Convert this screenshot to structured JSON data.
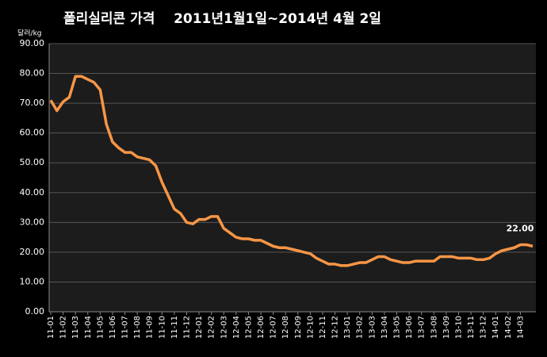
{
  "chart_data": {
    "type": "line",
    "title": "폴리실리콘 가격    2011년1월1일~2014년 4월 2일",
    "y_label": "달러/kg",
    "categories": [
      "11-01",
      null,
      "11-02",
      null,
      "11-03",
      null,
      "11-04",
      null,
      "11-05",
      null,
      "11-06",
      null,
      "11-07",
      null,
      "11-08",
      null,
      "11-09",
      null,
      "11-10",
      null,
      "11-11",
      null,
      "11-12",
      null,
      "12-01",
      null,
      "12-02",
      null,
      "12-03",
      null,
      "12-04",
      null,
      "12-05",
      null,
      "12-06",
      null,
      "12-07",
      null,
      "12-08",
      null,
      "12-09",
      null,
      "12-10",
      null,
      "12-11",
      null,
      "12-12",
      null,
      "13-01",
      null,
      "13-02",
      null,
      "13-03",
      null,
      "13-04",
      null,
      "13-05",
      null,
      "13-06",
      null,
      "13-07",
      null,
      "13-08",
      null,
      "13-09",
      null,
      "13-10",
      null,
      "13-11",
      null,
      "13-12",
      null,
      "14-01",
      null,
      "14-02",
      null,
      "14-03",
      null,
      null
    ],
    "series": [
      {
        "color": "#f79646",
        "values": [
          71,
          67.5,
          70.5,
          72,
          79,
          79,
          78,
          77,
          74.5,
          63,
          57,
          55,
          53.5,
          53.5,
          52,
          51.5,
          51,
          49,
          43.5,
          39,
          34.5,
          33,
          30,
          29.5,
          31,
          31,
          32,
          32,
          28,
          26.5,
          25,
          24.5,
          24.5,
          24,
          24,
          23,
          22,
          21.5,
          21.5,
          21,
          20.5,
          20,
          19.5,
          18,
          17,
          16,
          16,
          15.5,
          15.5,
          16,
          16.5,
          16.5,
          17.5,
          18.5,
          18.5,
          17.5,
          17,
          16.5,
          16.5,
          17,
          17,
          17,
          17,
          18.5,
          18.5,
          18.5,
          18,
          18,
          18,
          17.5,
          17.5,
          18,
          19.5,
          20.5,
          21,
          21.5,
          22.5,
          22.5,
          22
        ],
        "value_labels": [
          null,
          null,
          null,
          null,
          null,
          null,
          null,
          null,
          null,
          null,
          null,
          null,
          null,
          null,
          null,
          null,
          null,
          null,
          null,
          null,
          null,
          null,
          null,
          null,
          null,
          null,
          null,
          null,
          null,
          null,
          null,
          null,
          null,
          null,
          null,
          null,
          null,
          null,
          null,
          null,
          null,
          null,
          null,
          null,
          null,
          null,
          null,
          null,
          null,
          null,
          null,
          null,
          null,
          null,
          null,
          null,
          null,
          null,
          null,
          null,
          null,
          null,
          null,
          null,
          null,
          null,
          null,
          null,
          null,
          null,
          null,
          null,
          null,
          null,
          null,
          null,
          null,
          null,
          "22.00"
        ]
      }
    ],
    "ylim": [
      0,
      90
    ],
    "yticks": [
      {
        "value": 0,
        "label": "0.00"
      },
      {
        "value": 10,
        "label": "10.00"
      },
      {
        "value": 20,
        "label": "20.00"
      },
      {
        "value": 30,
        "label": "30.00"
      },
      {
        "value": 40,
        "label": "40.00"
      },
      {
        "value": 50,
        "label": "50.00"
      },
      {
        "value": 60,
        "label": "60.00"
      },
      {
        "value": 70,
        "label": "70.00"
      },
      {
        "value": 80,
        "label": "80.00"
      },
      {
        "value": 90,
        "label": "90.00"
      }
    ],
    "grid": true
  }
}
